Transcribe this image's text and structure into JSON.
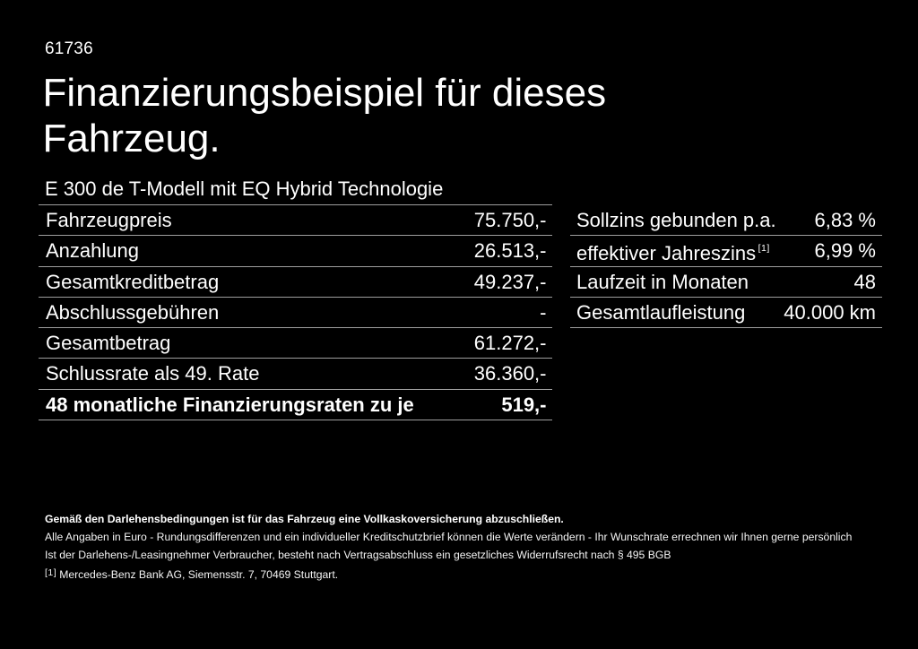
{
  "page": {
    "background_color": "#000000",
    "text_color": "#ffffff",
    "divider_color": "#9e9e9e"
  },
  "header": {
    "vehicle_code": "61736",
    "title_line1": "Finanzierungsbeispiel für dieses",
    "title_line2": "Fahrzeug.",
    "model_subtitle": "E 300 de T-Modell mit EQ Hybrid Technologie"
  },
  "finance_table": {
    "rows": [
      {
        "label": "Fahrzeugpreis",
        "value": "75.750,-"
      },
      {
        "label": "Anzahlung",
        "value": "26.513,-"
      },
      {
        "label": "Gesamtkreditbetrag",
        "value": "49.237,-"
      },
      {
        "label": "Abschlussgebühren",
        "value": "-"
      },
      {
        "label": "Gesamtbetrag",
        "value": "61.272,-"
      },
      {
        "label": "Schlussrate als 49. Rate",
        "value": "36.360,-"
      },
      {
        "label": "48 monatliche Finanzierungsraten zu je",
        "value": "519,-"
      }
    ]
  },
  "conditions_table": {
    "rows": [
      {
        "label": "Sollzins gebunden p.a.",
        "value": "6,83 %"
      },
      {
        "label": "effektiver Jahreszins",
        "footnote_marker": "[1]",
        "value": "6,99 %"
      },
      {
        "label": "Laufzeit in Monaten",
        "value": "48"
      },
      {
        "label": "Gesamtlaufleistung",
        "value": "40.000 km"
      }
    ]
  },
  "footer": {
    "bold_note": "Gemäß den Darlehensbedingungen ist für das Fahrzeug eine Vollkaskoversicherung abzuschließen.",
    "note_line2": "Alle Angaben in Euro - Rundungsdifferenzen und ein individueller Kreditschutzbrief können die Werte verändern - Ihr Wunschrate errechnen wir Ihnen gerne persönlich",
    "note_line3": "Ist der Darlehens-/Leasingnehmer Verbraucher, besteht nach Vertragsabschluss ein gesetzliches Widerrufsrecht nach § 495 BGB",
    "footnote_marker": "[1]",
    "footnote_text": "Mercedes-Benz Bank AG, Siemensstr. 7, 70469 Stuttgart."
  }
}
